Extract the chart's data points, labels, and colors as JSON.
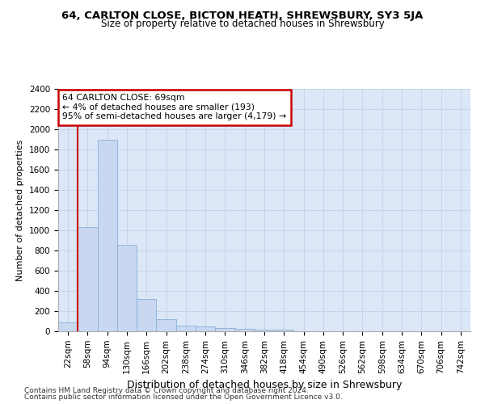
{
  "title1": "64, CARLTON CLOSE, BICTON HEATH, SHREWSBURY, SY3 5JA",
  "title2": "Size of property relative to detached houses in Shrewsbury",
  "xlabel": "Distribution of detached houses by size in Shrewsbury",
  "ylabel": "Number of detached properties",
  "footnote1": "Contains HM Land Registry data © Crown copyright and database right 2024.",
  "footnote2": "Contains public sector information licensed under the Open Government Licence v3.0.",
  "bin_labels": [
    "22sqm",
    "58sqm",
    "94sqm",
    "130sqm",
    "166sqm",
    "202sqm",
    "238sqm",
    "274sqm",
    "310sqm",
    "346sqm",
    "382sqm",
    "418sqm",
    "454sqm",
    "490sqm",
    "526sqm",
    "562sqm",
    "598sqm",
    "634sqm",
    "670sqm",
    "706sqm",
    "742sqm"
  ],
  "bar_values": [
    90,
    1030,
    1900,
    855,
    320,
    120,
    60,
    50,
    30,
    25,
    20,
    15,
    0,
    0,
    0,
    0,
    0,
    0,
    0,
    0,
    0
  ],
  "bar_color": "#c8d8f0",
  "bar_edge_color": "#8ab0d8",
  "grid_color": "#c8d4e8",
  "bg_color": "#dce8f8",
  "vline_color": "#cc0000",
  "annotation_text": "64 CARLTON CLOSE: 69sqm\n← 4% of detached houses are smaller (193)\n95% of semi-detached houses are larger (4,179) →",
  "annotation_box_color": "#cc0000",
  "ylim": [
    0,
    2400
  ],
  "yticks": [
    0,
    200,
    400,
    600,
    800,
    1000,
    1200,
    1400,
    1600,
    1800,
    2000,
    2200,
    2400
  ],
  "title1_fontsize": 9.5,
  "title2_fontsize": 8.5,
  "ylabel_fontsize": 8,
  "xlabel_fontsize": 9,
  "footnote_fontsize": 6.5,
  "tick_fontsize": 7.5
}
